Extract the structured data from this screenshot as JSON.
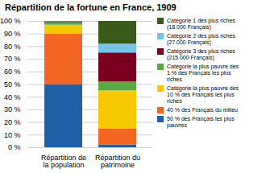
{
  "chart_data": {
    "type": "bar",
    "stacked": true,
    "title": "Répartition de la fortune en France, 1909",
    "categories": [
      "Répartition de la population",
      "Répartition du patrimoine"
    ],
    "series": [
      {
        "name": "50 % des Français les plus\npauvres",
        "color": "#1f5fa6",
        "values": [
          50,
          2
        ]
      },
      {
        "name": "40 % des Français du milieu",
        "color": "#f26522",
        "values": [
          40,
          13
        ]
      },
      {
        "name": "Catégorie la plus pauvre des\n10 % des Français les plus\nriches",
        "color": "#f7c900",
        "values": [
          7,
          30
        ]
      },
      {
        "name": "Catégorie la plus pauvre des\n1 % des Français les plus\nriches",
        "color": "#5aaa44",
        "values": [
          2,
          7
        ]
      },
      {
        "name": "Catégorie 3 des plus riches\n(215.000 Français)",
        "color": "#7b0020",
        "values": [
          0.67,
          23
        ]
      },
      {
        "name": "Catégorie 2 des plus riches\n(27.000 Français)",
        "color": "#74c6e8",
        "values": [
          0.17,
          7
        ]
      },
      {
        "name": "Catégorie 1 des plus riches\n(18.000 Français)",
        "color": "#3a5a1c",
        "values": [
          0.16,
          18
        ]
      }
    ],
    "ylim": [
      0,
      100
    ],
    "yticks": [
      {
        "value": 0,
        "label": "0 %"
      },
      {
        "value": 10,
        "label": "10 %"
      },
      {
        "value": 20,
        "label": "20 %"
      },
      {
        "value": 30,
        "label": "30 %"
      },
      {
        "value": 40,
        "label": "40 %"
      },
      {
        "value": 50,
        "label": "50 %"
      },
      {
        "value": 60,
        "label": "60 %"
      },
      {
        "value": 70,
        "label": "70 %"
      },
      {
        "value": 80,
        "label": "80 %"
      },
      {
        "value": 90,
        "label": "90 %"
      },
      {
        "value": 100,
        "label": "100 %"
      }
    ],
    "grid": true,
    "legend": "right"
  }
}
